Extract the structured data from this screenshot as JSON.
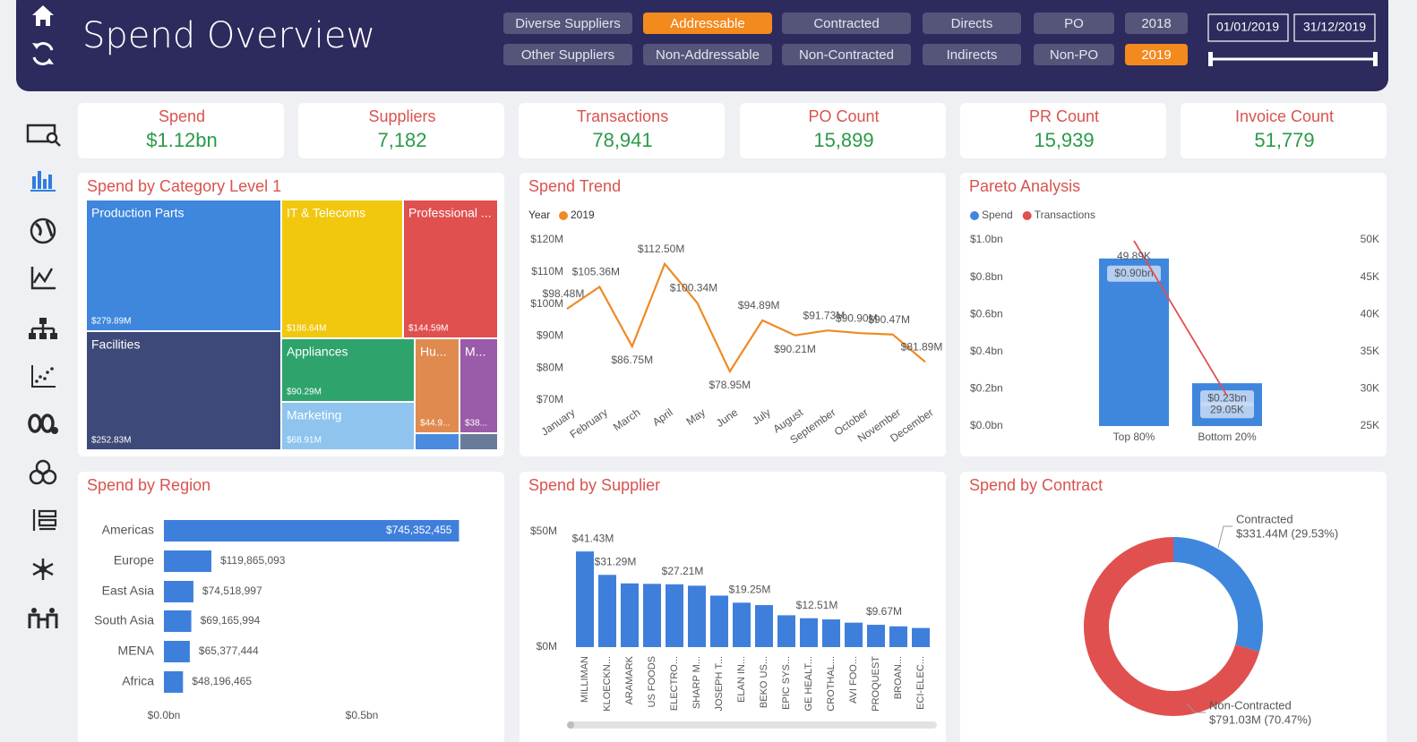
{
  "header": {
    "title": "Spend Overview"
  },
  "filters": {
    "rows": [
      [
        {
          "label": "Diverse Suppliers",
          "selected": false
        },
        {
          "label": "Addressable",
          "selected": true
        },
        {
          "label": "Contracted",
          "selected": false
        },
        {
          "label": "Directs",
          "selected": false
        },
        {
          "label": "PO",
          "selected": false
        },
        {
          "label": "2018",
          "selected": false
        }
      ],
      [
        {
          "label": "Other Suppliers",
          "selected": false
        },
        {
          "label": "Non-Addressable",
          "selected": false
        },
        {
          "label": "Non-Contracted",
          "selected": false
        },
        {
          "label": "Indirects",
          "selected": false
        },
        {
          "label": "Non-PO",
          "selected": false
        },
        {
          "label": "2019",
          "selected": true
        }
      ]
    ]
  },
  "date_range": {
    "start": "01/01/2019",
    "end": "31/12/2019"
  },
  "kpis": [
    {
      "label": "Spend",
      "value": "$1.12bn"
    },
    {
      "label": "Suppliers",
      "value": "7,182"
    },
    {
      "label": "Transactions",
      "value": "78,941"
    },
    {
      "label": "PO Count",
      "value": "15,899"
    },
    {
      "label": "PR Count",
      "value": "15,939"
    },
    {
      "label": "Invoice Count",
      "value": "51,779"
    }
  ],
  "chart_data": [
    {
      "type": "treemap",
      "title": "Spend by Category Level 1",
      "categories": [
        "Production Parts",
        "IT & Telecoms",
        "Professional ...",
        "Facilities",
        "Appliances",
        "Marketing",
        "Hu...",
        "M..."
      ],
      "values": [
        279.89,
        186.64,
        144.59,
        252.83,
        90.29,
        68.91,
        44.9,
        38
      ],
      "value_labels": [
        "$279.89M",
        "$186.64M",
        "$144.59M",
        "$252.83M",
        "$90.29M",
        "$68.91M",
        "$44.9...",
        "$38..."
      ],
      "colors": [
        "#3f86dd",
        "#f2c80f",
        "#e0504f",
        "#3d4a79",
        "#2ea36b",
        "#8ec4ee",
        "#e08a50",
        "#9a5ba8"
      ]
    },
    {
      "type": "line",
      "title": "Spend Trend",
      "legend_title": "Year",
      "categories": [
        "January",
        "February",
        "March",
        "April",
        "May",
        "June",
        "July",
        "August",
        "September",
        "October",
        "November",
        "December"
      ],
      "series": [
        {
          "name": "2019",
          "color": "#ef8a24",
          "values": [
            98.48,
            105.36,
            86.75,
            112.5,
            100.34,
            78.95,
            94.89,
            90.21,
            91.73,
            90.9,
            90.47,
            81.89
          ],
          "value_labels": [
            "$98.48M",
            "$105.36M",
            "$86.75M",
            "$112.50M",
            "$100.34M",
            "$78.95M",
            "$94.89M",
            "$90.21M",
            "$91.73M",
            "$90.90M",
            "$90.47M",
            "$81.89M"
          ]
        }
      ],
      "ylim": [
        70,
        120
      ],
      "yticks": [
        {
          "value": 70,
          "label": "$70M"
        },
        {
          "value": 80,
          "label": "$80M"
        },
        {
          "value": 90,
          "label": "$90M"
        },
        {
          "value": 100,
          "label": "$100M"
        },
        {
          "value": 110,
          "label": "$110M"
        },
        {
          "value": 120,
          "label": "$120M"
        }
      ]
    },
    {
      "type": "combo",
      "title": "Pareto Analysis",
      "categories": [
        "Top 80%",
        "Bottom 20%"
      ],
      "series": [
        {
          "name": "Spend",
          "color": "#3f86dd",
          "kind": "bar",
          "values": [
            0.9,
            0.23
          ],
          "value_labels": [
            "$0.90bn",
            "$0.23bn"
          ]
        },
        {
          "name": "Transactions",
          "color": "#e0504f",
          "kind": "line",
          "axis": "y2",
          "values": [
            49890,
            29050
          ],
          "value_labels": [
            "49.89K",
            "29.05K"
          ]
        }
      ],
      "ylim": [
        0,
        1.0
      ],
      "yticks": [
        {
          "value": 0,
          "label": "$0.0bn"
        },
        {
          "value": 0.2,
          "label": "$0.2bn"
        },
        {
          "value": 0.4,
          "label": "$0.4bn"
        },
        {
          "value": 0.6,
          "label": "$0.6bn"
        },
        {
          "value": 0.8,
          "label": "$0.8bn"
        },
        {
          "value": 1.0,
          "label": "$1.0bn"
        }
      ],
      "y2lim": [
        25000,
        50000
      ],
      "y2ticks": [
        {
          "value": 25000,
          "label": "25K"
        },
        {
          "value": 30000,
          "label": "30K"
        },
        {
          "value": 35000,
          "label": "35K"
        },
        {
          "value": 40000,
          "label": "40K"
        },
        {
          "value": 45000,
          "label": "45K"
        },
        {
          "value": 50000,
          "label": "50K"
        }
      ]
    },
    {
      "type": "hbar",
      "title": "Spend by Region",
      "color": "#3f7fdc",
      "categories": [
        "Americas",
        "Europe",
        "East Asia",
        "South Asia",
        "MENA",
        "Africa"
      ],
      "values": [
        745352455,
        119865093,
        74518997,
        69165994,
        65377444,
        48196465
      ],
      "value_labels": [
        "$745,352,455",
        "$119,865,093",
        "$74,518,997",
        "$69,165,994",
        "$65,377,444",
        "$48,196,465"
      ],
      "xlim": [
        0,
        800000000
      ],
      "xticks": [
        {
          "value": 0,
          "label": "$0.0bn"
        },
        {
          "value": 500000000,
          "label": "$0.5bn"
        }
      ]
    },
    {
      "type": "bar",
      "title": "Spend by Supplier",
      "color": "#3f7fdc",
      "categories": [
        "MILLIMAN",
        "KLOECKN...",
        "ARAMARK",
        "US FOODS",
        "ELECTRO...",
        "SHARP M...",
        "JOSEPH T...",
        "ELAN IN...",
        "BEKO US...",
        "EPIC SYS...",
        "GE HEALT...",
        "CROTHAL...",
        "AVI FOO...",
        "PROQUEST",
        "BROAN...",
        "ECI-ELEC..."
      ],
      "values": [
        41.43,
        31.29,
        27.6,
        27.4,
        27.21,
        26.6,
        22.3,
        19.25,
        18.2,
        13.8,
        12.51,
        12.0,
        10.6,
        9.67,
        9.0,
        8.3
      ],
      "value_labels": [
        "$41.43M",
        "$31.29M",
        null,
        null,
        "$27.21M",
        null,
        null,
        "$19.25M",
        null,
        null,
        "$12.51M",
        null,
        null,
        "$9.67M",
        null,
        null
      ],
      "ylim": [
        0,
        50
      ],
      "yticks": [
        {
          "value": 0,
          "label": "$0M"
        },
        {
          "value": 50,
          "label": "$50M"
        }
      ]
    },
    {
      "type": "donut",
      "title": "Spend by Contract",
      "categories": [
        "Contracted",
        "Non-Contracted"
      ],
      "values": [
        331.44,
        791.03
      ],
      "value_labels": [
        "$331.44M (29.53%)",
        "$791.03M (70.47%)"
      ],
      "colors": [
        "#3f86dd",
        "#e0504f"
      ]
    }
  ]
}
